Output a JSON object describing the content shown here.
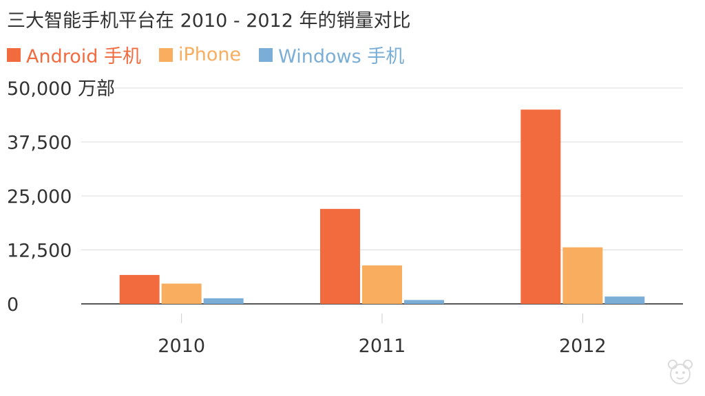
{
  "chart_data": {
    "type": "bar",
    "title": "三大智能手机平台在 2010 - 2012 年的销量对比",
    "categories": [
      "2010",
      "2011",
      "2012"
    ],
    "series": [
      {
        "name": "Android 手机",
        "color": "#f26b3f",
        "values": [
          6700,
          22000,
          45000
        ]
      },
      {
        "name": "iPhone",
        "color": "#f8ad5f",
        "values": [
          4700,
          8900,
          13100
        ]
      },
      {
        "name": "Windows 手机",
        "color": "#7aaed6",
        "values": [
          1300,
          900,
          1700
        ]
      }
    ],
    "yticks": [
      "0",
      "12,500",
      "25,000",
      "37,500",
      "50,000 万部"
    ],
    "ytick_values": [
      0,
      12500,
      25000,
      37500,
      50000
    ],
    "ylim": [
      0,
      50000
    ],
    "xlabel": "",
    "ylabel": "",
    "grid": true,
    "legend_position": "top-left"
  }
}
